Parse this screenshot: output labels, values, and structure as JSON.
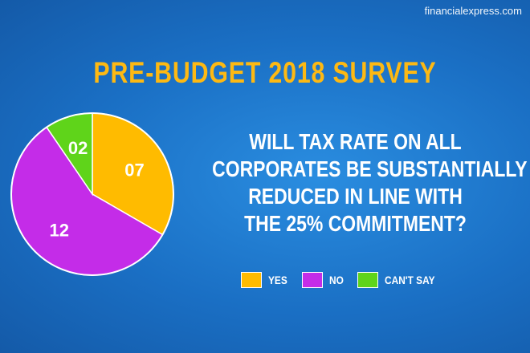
{
  "logo": "financialexpress.com",
  "chart_data": {
    "type": "pie",
    "title": "PRE-BUDGET 2018 SURVEY",
    "question": [
      "WILL TAX RATE ON ALL",
      "CORPORATES BE SUBSTANTIALLY",
      "REDUCED IN LINE WITH",
      "THE 25% COMMITMENT?"
    ],
    "categories": [
      "YES",
      "NO",
      "CAN'T SAY"
    ],
    "values": [
      7,
      12,
      2
    ],
    "labels": [
      "07",
      "12",
      "02"
    ],
    "colors": [
      "#ffbb00",
      "#c42ce8",
      "#5fd41a"
    ],
    "legend": "bottom"
  }
}
